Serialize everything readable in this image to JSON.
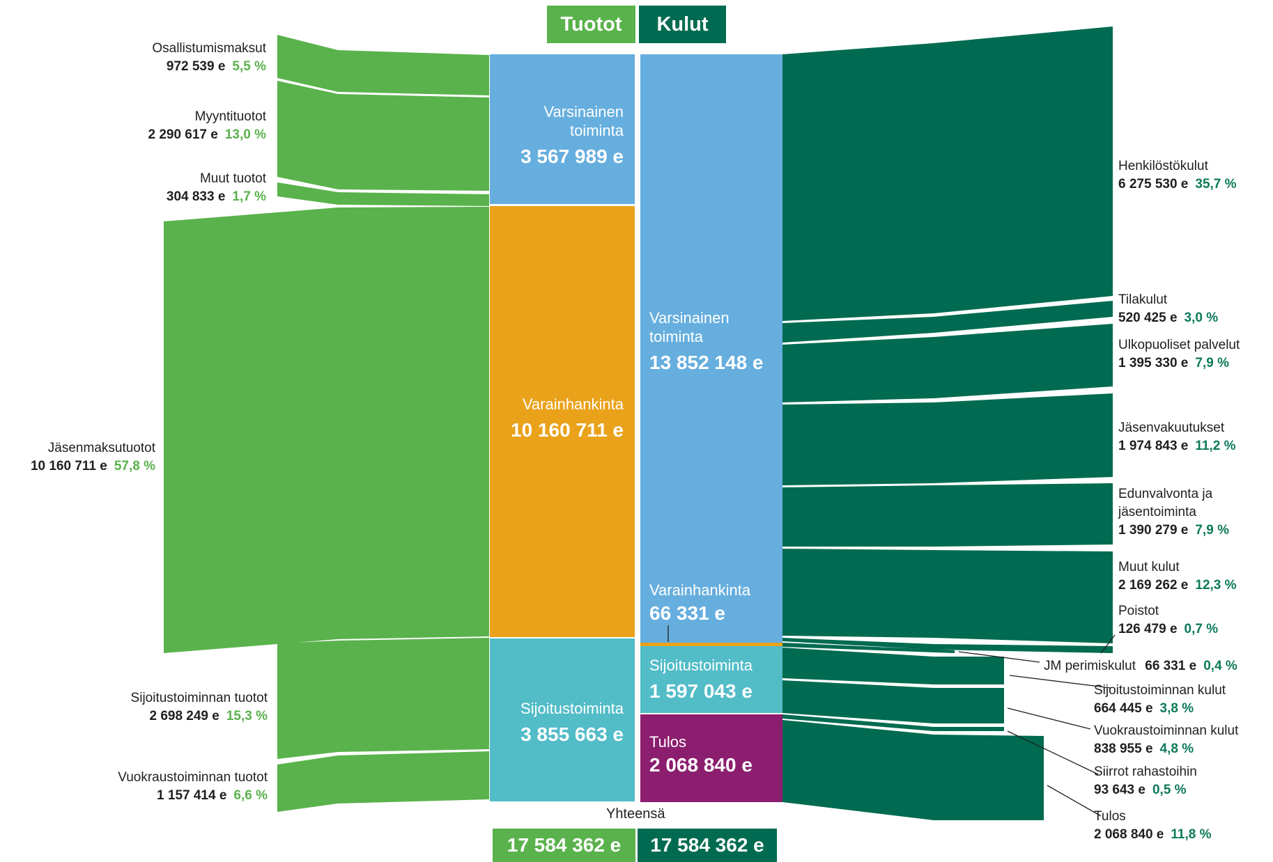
{
  "header": {
    "income": "Tuotot",
    "expenses": "Kulut"
  },
  "footer": {
    "caption": "Yhteensä",
    "income_total": "17 584 362 e",
    "expense_total": "17 584 362 e"
  },
  "colors": {
    "income_flow": "#5ab24c",
    "expense_flow": "#006b50",
    "operations": "#66aede",
    "fundraising": "#eaa21a",
    "investment": "#52bcc7",
    "result": "#8b1e6e"
  },
  "income_sources": [
    {
      "name": "Osallistumismaksut",
      "value": "972 539 e",
      "pct": "5,5 %"
    },
    {
      "name": "Myyntituotot",
      "value": "2 290 617 e",
      "pct": "13,0 %"
    },
    {
      "name": "Muut tuotot",
      "value": "304 833 e",
      "pct": "1,7 %"
    },
    {
      "name": "Jäsenmaksutuotot",
      "value": "10 160 711 e",
      "pct": "57,8 %"
    },
    {
      "name": "Sijoitustoiminnan tuotot",
      "value": "2 698 249 e",
      "pct": "15,3 %"
    },
    {
      "name": "Vuokraustoiminnan tuotot",
      "value": "1 157 414 e",
      "pct": "6,6 %"
    }
  ],
  "income_nodes": [
    {
      "name": "Varsinainen toiminta",
      "value": "3 567 989 e"
    },
    {
      "name": "Varainhankinta",
      "value": "10 160 711 e"
    },
    {
      "name": "Sijoitustoiminta",
      "value": "3 855 663 e"
    }
  ],
  "expense_nodes": [
    {
      "name": "Varsinainen toiminta",
      "value": "13 852 148 e"
    },
    {
      "name": "Varainhankinta",
      "value": "66 331 e"
    },
    {
      "name": "Sijoitustoiminta",
      "value": "1 597 043 e"
    },
    {
      "name": "Tulos",
      "value": "2 068 840  e"
    }
  ],
  "expense_items": [
    {
      "name": "Henkilöstökulut",
      "value": "6 275 530 e",
      "pct": "35,7 %"
    },
    {
      "name": "Tilakulut",
      "value": "520 425 e",
      "pct": "3,0 %"
    },
    {
      "name": "Ulkopuoliset palvelut",
      "value": "1 395 330 e",
      "pct": "7,9 %"
    },
    {
      "name": "Jäsenvakuutukset",
      "value": "1 974 843 e",
      "pct": "11,2 %"
    },
    {
      "name": "Edunvalvonta ja jäsentoiminta",
      "value": "1 390 279 e",
      "pct": "7,9 %"
    },
    {
      "name": "Muut kulut",
      "value": "2 169 262 e",
      "pct": "12,3 %"
    },
    {
      "name": "Poistot",
      "value": "126 479 e",
      "pct": "0,7 %"
    },
    {
      "name": "JM perimiskulut",
      "value": "66 331 e",
      "pct": "0,4 %"
    },
    {
      "name": "Sijoitustoiminnan kulut",
      "value": "664 445 e",
      "pct": "3,8 %"
    },
    {
      "name": "Vuokraustoiminnan kulut",
      "value": "838 955 e",
      "pct": "4,8 %"
    },
    {
      "name": "Siirrot rahastoihin",
      "value": "93 643 e",
      "pct": "0,5 %"
    },
    {
      "name": "Tulos",
      "value": "2 068 840 e",
      "pct": "11,8 %"
    }
  ]
}
